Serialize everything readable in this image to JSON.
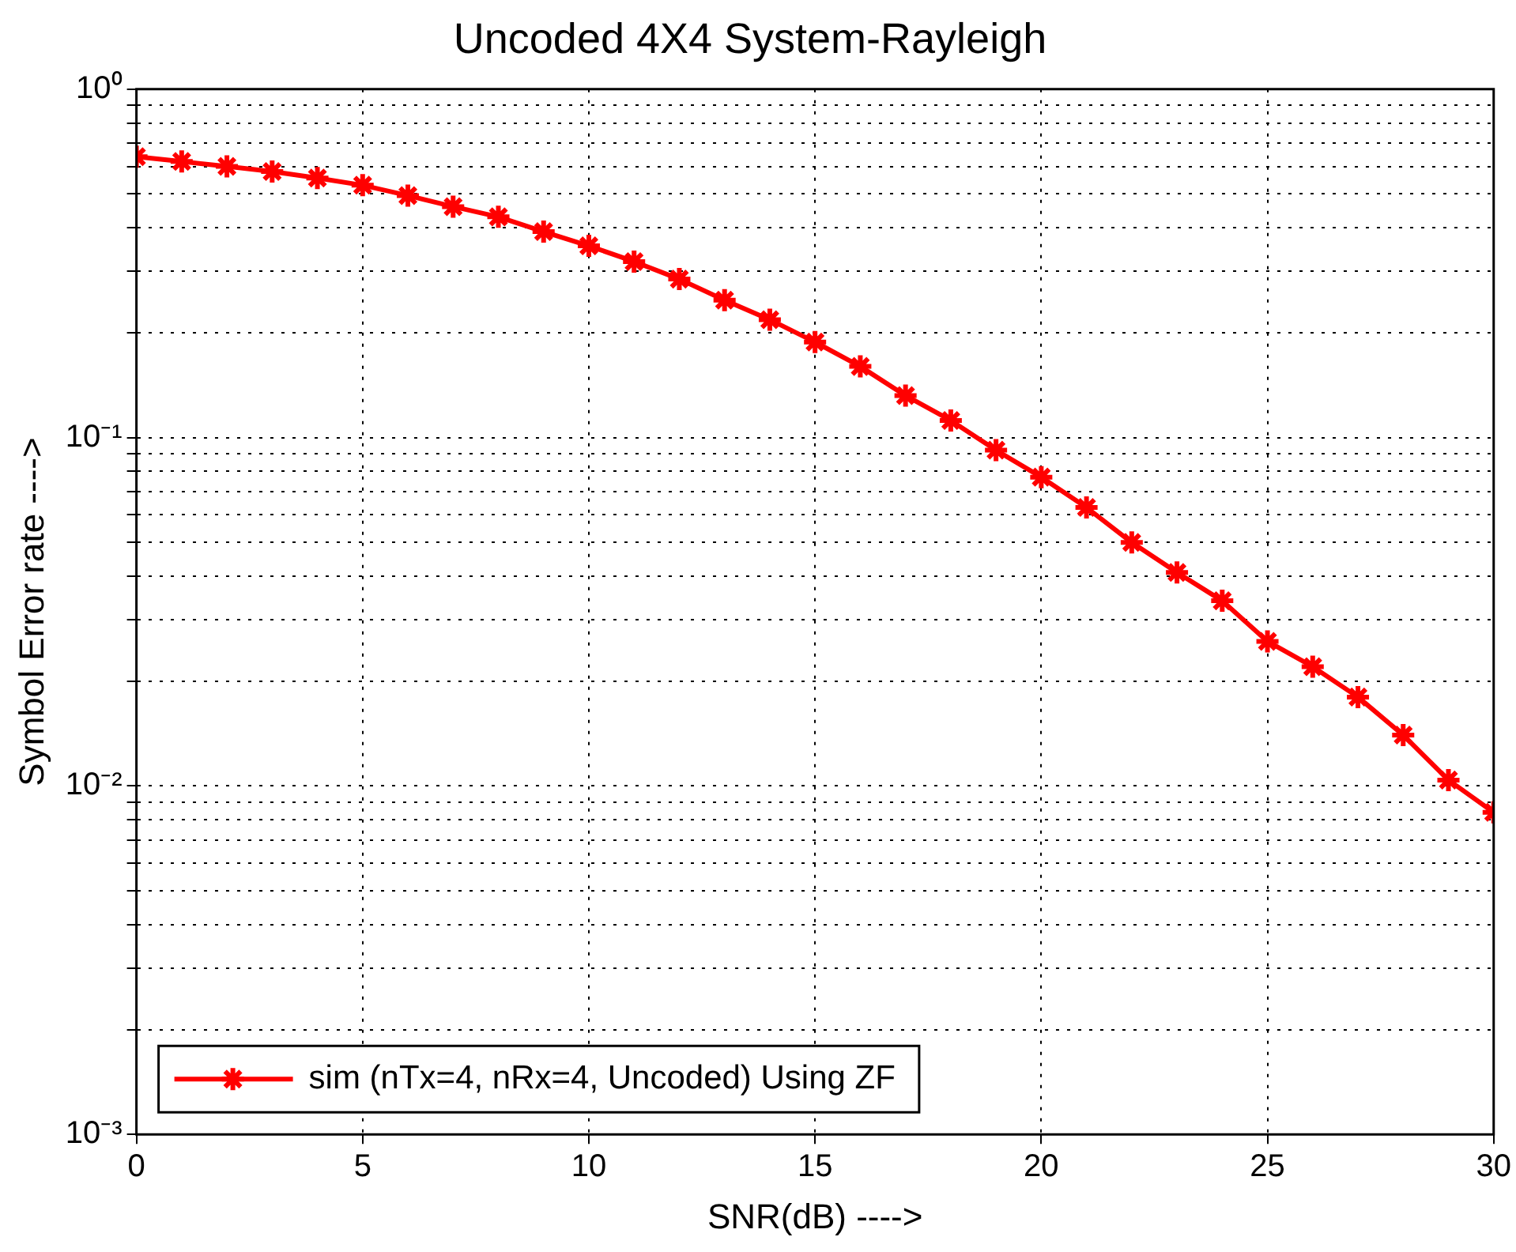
{
  "chart_data": {
    "type": "line",
    "title": "Uncoded 4X4 System-Rayleigh",
    "xlabel": "SNR(dB) ---->",
    "ylabel": "Symbol Error rate ---->",
    "x": [
      0,
      1,
      2,
      3,
      4,
      5,
      6,
      7,
      8,
      9,
      10,
      11,
      12,
      13,
      14,
      15,
      16,
      17,
      18,
      19,
      20,
      21,
      22,
      23,
      24,
      25,
      26,
      27,
      28,
      29,
      30
    ],
    "series": [
      {
        "name": "sim (nTx=4, nRx=4, Uncoded) Using ZF",
        "color": "#ff0000",
        "values": [
          0.64,
          0.62,
          0.6,
          0.58,
          0.556,
          0.53,
          0.495,
          0.46,
          0.43,
          0.39,
          0.355,
          0.32,
          0.285,
          0.248,
          0.218,
          0.188,
          0.16,
          0.132,
          0.112,
          0.092,
          0.077,
          0.063,
          0.05,
          0.041,
          0.034,
          0.026,
          0.022,
          0.018,
          0.014,
          0.0104,
          0.0084
        ]
      }
    ],
    "xlim": [
      0,
      30
    ],
    "xticks": [
      0,
      5,
      10,
      15,
      20,
      25,
      30
    ],
    "ylim": [
      0.001,
      1
    ],
    "yticks": [
      {
        "value": 0.001,
        "label": "10⁻³"
      },
      {
        "value": 0.01,
        "label": "10⁻²"
      },
      {
        "value": 0.1,
        "label": "10⁻¹"
      },
      {
        "value": 1,
        "label": "10⁰"
      }
    ],
    "log": "y",
    "grid": true,
    "legend": "bottom left",
    "marker": "cross",
    "line_style": "solid"
  }
}
